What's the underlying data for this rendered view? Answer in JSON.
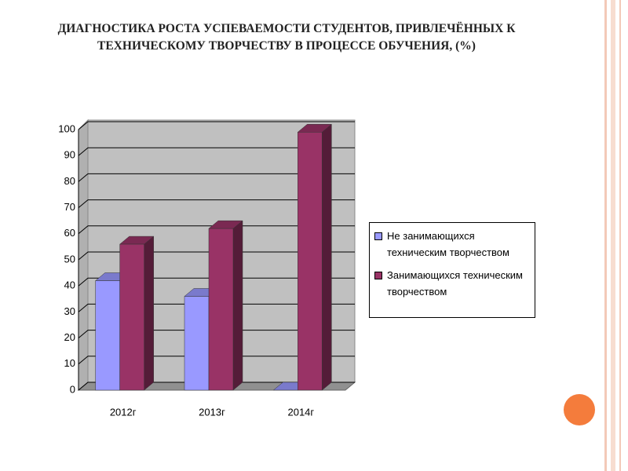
{
  "chart_data": {
    "type": "bar3d",
    "title": "ДИАГНОСТИКА РОСТА УСПЕВАЕМОСТИ СТУДЕНТОВ, ПРИВЛЕЧЁННЫХ К ТЕХНИЧЕСКОМУ ТВОРЧЕСТВУ В ПРОЦЕССЕ ОБУЧЕНИЯ, (%)",
    "categories": [
      "2012г",
      "2013г",
      "2014г"
    ],
    "series": [
      {
        "name": "Не занимающихся техническим творчеством",
        "color": "#9999ff",
        "values": [
          42,
          36,
          0
        ]
      },
      {
        "name": "Занимающихся техническим творчеством",
        "color": "#993366",
        "values": [
          56,
          62,
          99
        ]
      }
    ],
    "ylim": [
      0,
      100
    ],
    "yticks": [
      0,
      10,
      20,
      30,
      40,
      50,
      60,
      70,
      80,
      90,
      100
    ],
    "grid": true,
    "legend": "right"
  }
}
